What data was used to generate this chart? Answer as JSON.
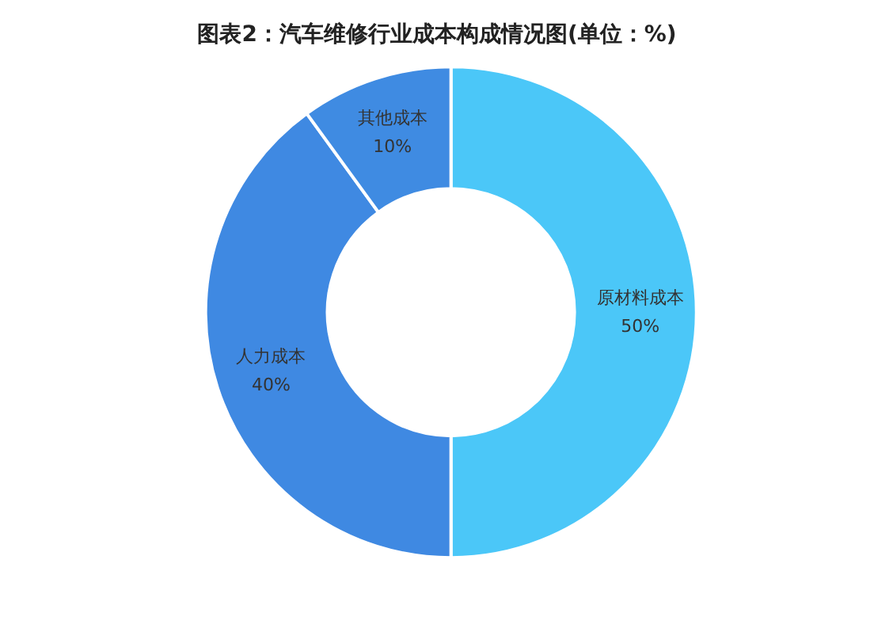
{
  "chart_data": {
    "type": "donut",
    "title": "图表2：汽车维修行业成本构成情况图(单位：%)",
    "categories": [
      "原材料成本",
      "人力成本",
      "其他成本"
    ],
    "values": [
      50,
      40,
      10
    ],
    "colors": [
      "#4bc7f8",
      "#3f89e2",
      "#3f8be2"
    ],
    "value_labels": [
      "50%",
      "40%",
      "10%"
    ],
    "legend": false
  }
}
